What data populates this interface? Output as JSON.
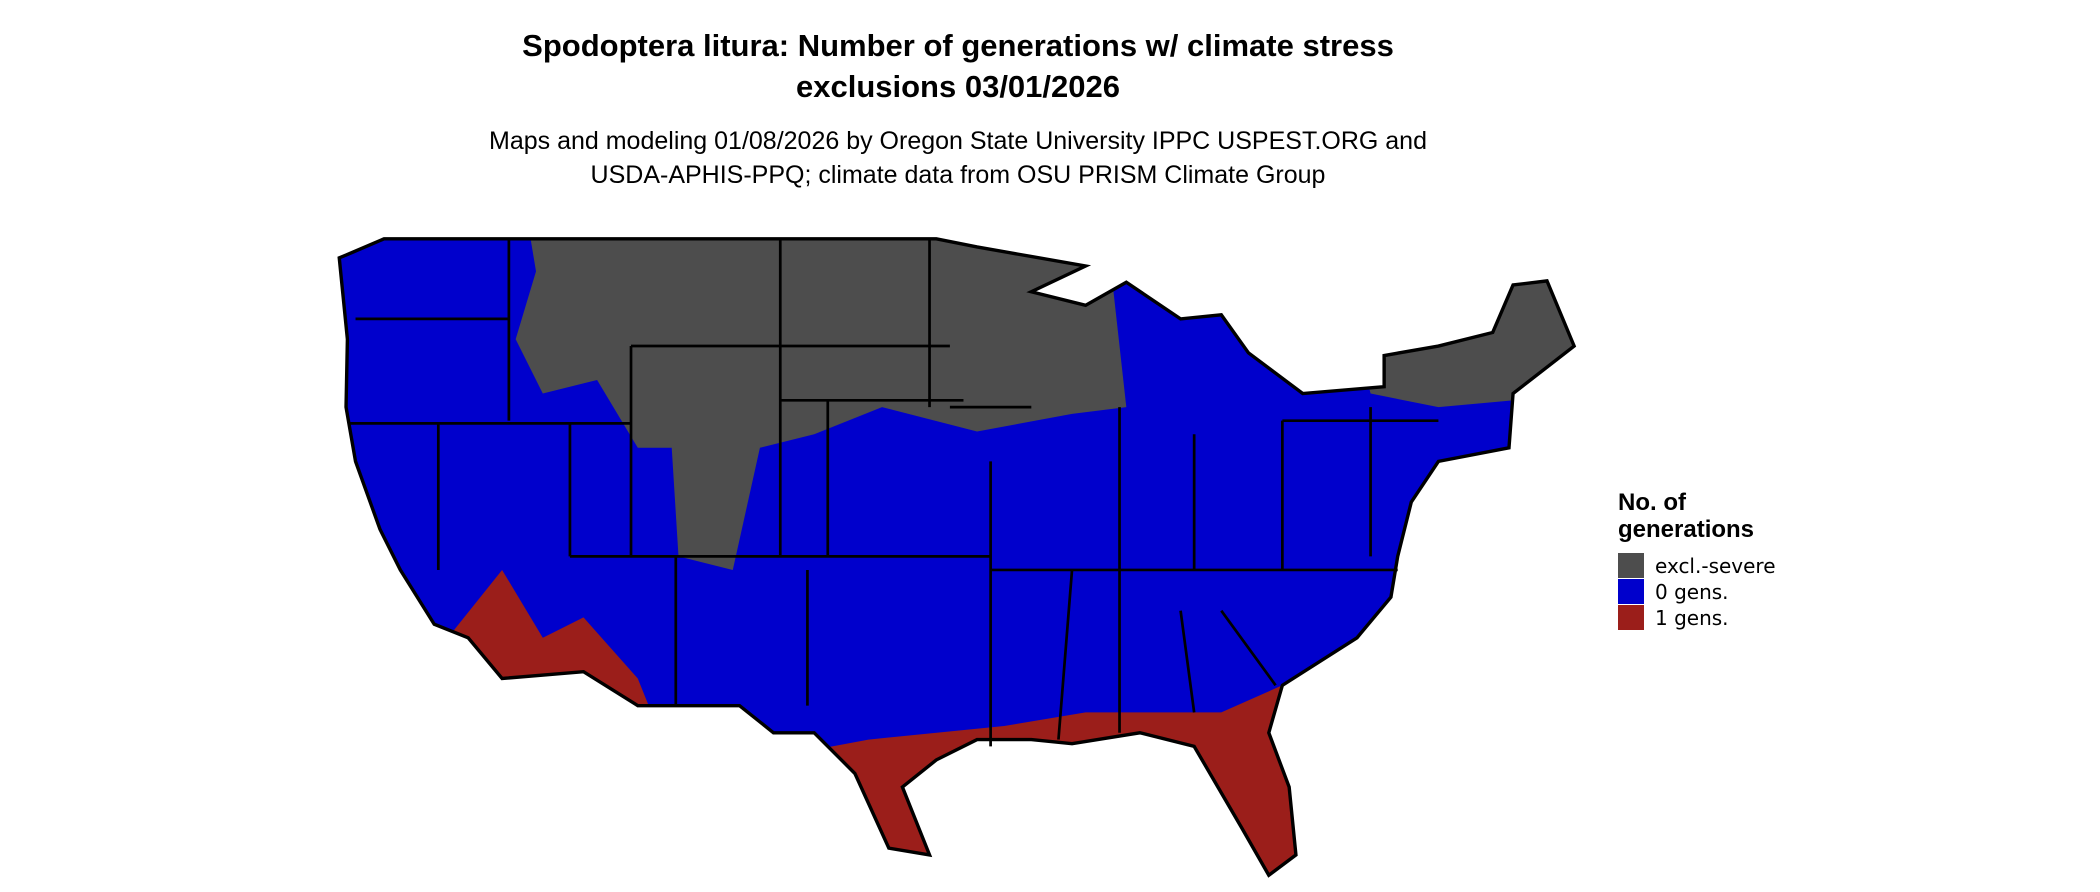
{
  "title": [
    "Spodoptera litura: Number of generations w/ climate stress",
    "exclusions 03/01/2026"
  ],
  "subtitle": [
    "Maps and modeling 01/08/2026 by Oregon State University IPPC USPEST.ORG and",
    "USDA-APHIS-PPQ; climate data from OSU PRISM Climate Group"
  ],
  "legend": {
    "title": [
      "No. of",
      "generations"
    ],
    "items": [
      {
        "label": "excl.-severe",
        "color": "#4d4d4d"
      },
      {
        "label": "0 gens.",
        "color": "#0000cc"
      },
      {
        "label": "1 gens.",
        "color": "#9b1e1a"
      }
    ]
  }
}
